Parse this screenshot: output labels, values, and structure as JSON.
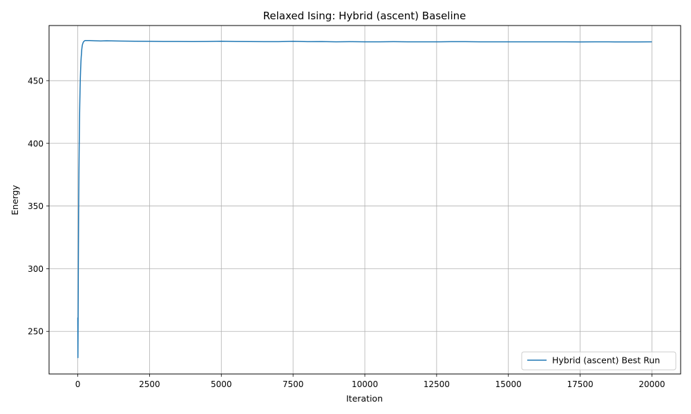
{
  "chart_data": {
    "type": "line",
    "title": "Relaxed Ising: Hybrid (ascent) Baseline",
    "xlabel": "Iteration",
    "ylabel": "Energy",
    "xlim": [
      -1000,
      21000
    ],
    "ylim": [
      216,
      494
    ],
    "x_ticks": [
      0,
      2500,
      5000,
      7500,
      10000,
      12500,
      15000,
      17500,
      20000
    ],
    "y_ticks": [
      250,
      300,
      350,
      400,
      450
    ],
    "grid": true,
    "legend_position": "lower-right",
    "series": [
      {
        "name": "Hybrid (ascent) Best Run",
        "color": "#1f77b4",
        "x": [
          0,
          5,
          10,
          20,
          30,
          40,
          50,
          60,
          70,
          80,
          90,
          100,
          110,
          120,
          130,
          140,
          150,
          160,
          180,
          200,
          220,
          250,
          300,
          400,
          600,
          800,
          1000,
          1500,
          2000,
          2500,
          3000,
          3500,
          4000,
          4500,
          5000,
          5500,
          6000,
          6500,
          7000,
          7500,
          8000,
          8500,
          9000,
          9500,
          10000,
          10500,
          11000,
          11500,
          12000,
          12500,
          13000,
          13500,
          14000,
          14500,
          15000,
          15500,
          16000,
          16500,
          17000,
          17500,
          18000,
          18500,
          19000,
          19500,
          20000
        ],
        "y": [
          261,
          229,
          250,
          300,
          345,
          375,
          398,
          417,
          431,
          443,
          452,
          459,
          465,
          469,
          472,
          475,
          477,
          478.5,
          480,
          481,
          481.5,
          482,
          482,
          482,
          481.8,
          481.7,
          481.8,
          481.6,
          481.5,
          481.4,
          481.3,
          481.3,
          481.2,
          481.3,
          481.5,
          481.3,
          481.2,
          481.1,
          481.1,
          481.4,
          481.1,
          481.2,
          481,
          481.1,
          481,
          481,
          481.1,
          481,
          481,
          481,
          481.1,
          481.1,
          481,
          481,
          481,
          481,
          481,
          481,
          481,
          480.9,
          481,
          481,
          480.9,
          480.9,
          481
        ]
      }
    ]
  }
}
